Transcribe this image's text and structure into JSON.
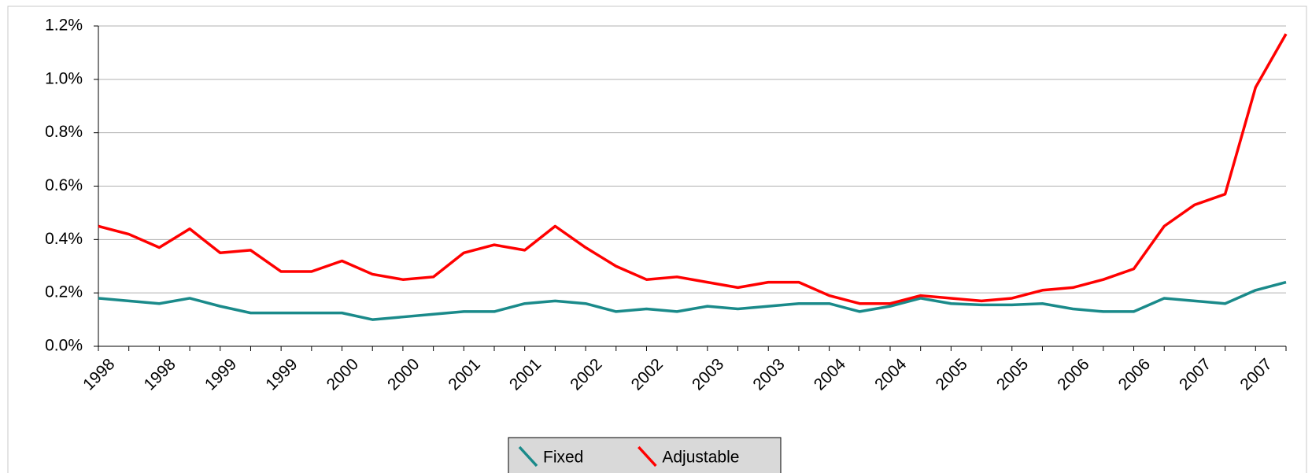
{
  "chart_data": {
    "type": "line",
    "categories": [
      "1998",
      null,
      "1998",
      null,
      "1999",
      null,
      "1999",
      null,
      "2000",
      null,
      "2000",
      null,
      "2001",
      null,
      "2001",
      null,
      "2002",
      null,
      "2002",
      null,
      "2003",
      null,
      "2003",
      null,
      "2004",
      null,
      "2004",
      null,
      "2005",
      null,
      "2005",
      null,
      "2006",
      null,
      "2006",
      null,
      "2007",
      null,
      "2007",
      null
    ],
    "series": [
      {
        "name": "Fixed",
        "color": "#1a8a8a",
        "values": [
          0.18,
          0.17,
          0.16,
          0.18,
          0.15,
          0.125,
          0.125,
          0.125,
          0.125,
          0.1,
          0.11,
          0.12,
          0.13,
          0.13,
          0.16,
          0.17,
          0.16,
          0.13,
          0.14,
          0.13,
          0.15,
          0.14,
          0.15,
          0.16,
          0.16,
          0.13,
          0.15,
          0.18,
          0.16,
          0.155,
          0.155,
          0.16,
          0.14,
          0.13,
          0.13,
          0.18,
          0.17,
          0.16,
          0.21,
          0.24
        ]
      },
      {
        "name": "Adjustable",
        "color": "#ff0000",
        "values": [
          0.45,
          0.42,
          0.37,
          0.44,
          0.35,
          0.36,
          0.28,
          0.28,
          0.32,
          0.27,
          0.25,
          0.26,
          0.35,
          0.38,
          0.36,
          0.45,
          0.37,
          0.3,
          0.25,
          0.26,
          0.24,
          0.22,
          0.24,
          0.24,
          0.19,
          0.16,
          0.16,
          0.19,
          0.18,
          0.17,
          0.18,
          0.21,
          0.22,
          0.25,
          0.29,
          0.45,
          0.53,
          0.57,
          0.97,
          1.17
        ]
      }
    ],
    "ylim": [
      0,
      1.2
    ],
    "yticks": [
      {
        "value": 0,
        "label": "0.0%"
      },
      {
        "value": 0.2,
        "label": "0.2%"
      },
      {
        "value": 0.4,
        "label": "0.4%"
      },
      {
        "value": 0.6,
        "label": "0.6%"
      },
      {
        "value": 0.8,
        "label": "0.8%"
      },
      {
        "value": 1.0,
        "label": "1.0%"
      },
      {
        "value": 1.2,
        "label": "1.2%"
      }
    ],
    "grid": true,
    "legend": "bottom"
  }
}
